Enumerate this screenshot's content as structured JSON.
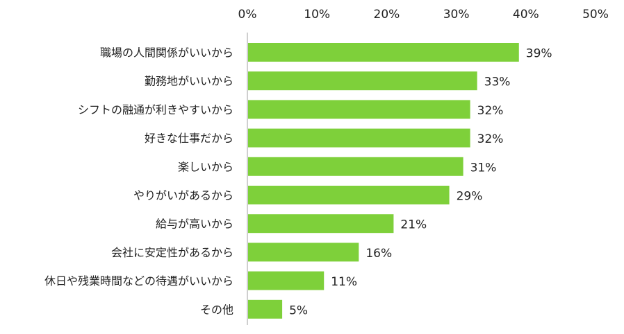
{
  "chart_data": {
    "type": "bar",
    "orientation": "horizontal",
    "categories": [
      "職場の人間関係がいいから",
      "勤務地がいいから",
      "シフトの融通が利きやすいから",
      "好きな仕事だから",
      "楽しいから",
      "やりがいがあるから",
      "給与が高いから",
      "会社に安定性があるから",
      "休日や残業時間などの待遇がいいから",
      "その他"
    ],
    "values": [
      39,
      33,
      32,
      32,
      31,
      29,
      21,
      16,
      11,
      5
    ],
    "value_labels": [
      "39%",
      "33%",
      "32%",
      "32%",
      "31%",
      "29%",
      "21%",
      "16%",
      "11%",
      "5%"
    ],
    "xticks": [
      "0%",
      "10%",
      "20%",
      "30%",
      "40%",
      "50%"
    ],
    "xlim": [
      0,
      50
    ],
    "title": "",
    "xlabel": "",
    "ylabel": "",
    "grid": false,
    "legend": "none",
    "axis_position": "top",
    "bar_color": "#7ED03A"
  }
}
